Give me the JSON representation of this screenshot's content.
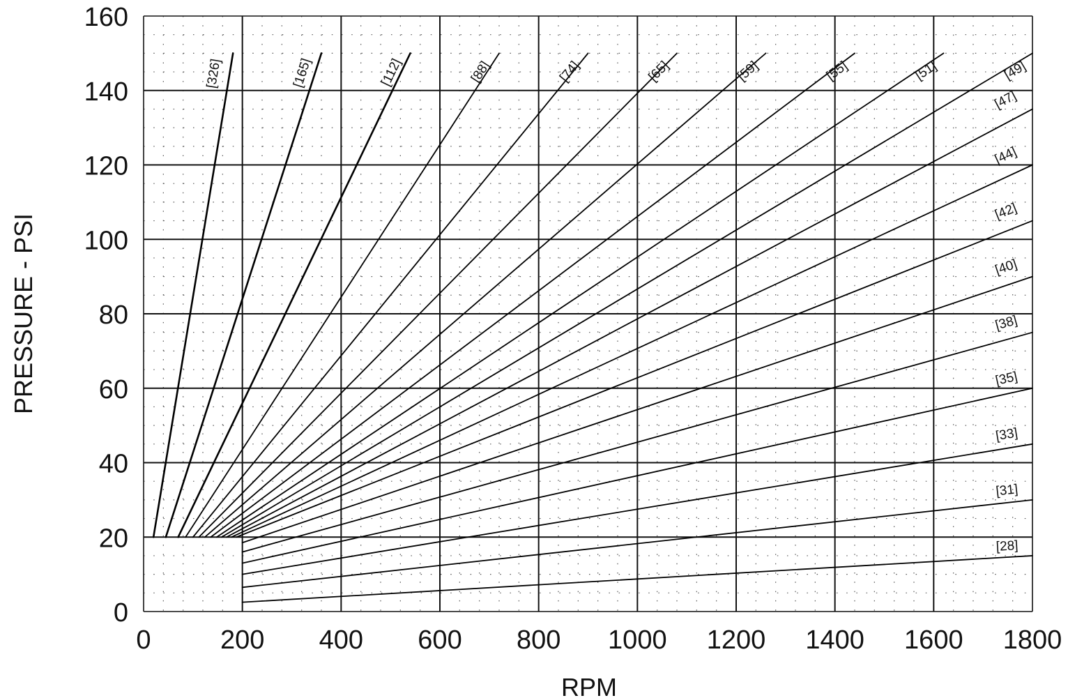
{
  "chart_data": {
    "type": "line",
    "title": "",
    "xlabel": "RPM",
    "ylabel": "PRESSURE - PSI",
    "xlim": [
      0,
      1800
    ],
    "ylim": [
      0,
      160
    ],
    "x_ticks": [
      "0",
      "200",
      "400",
      "600",
      "800",
      "1000",
      "1200",
      "1400",
      "1600",
      "1800"
    ],
    "y_ticks": [
      "0",
      "20",
      "40",
      "60",
      "80",
      "100",
      "120",
      "140",
      "160"
    ],
    "grid": true,
    "series": [
      {
        "name": "[326]",
        "points": [
          [
            20,
            20
          ],
          [
            181,
            150
          ]
        ]
      },
      {
        "name": "[165]",
        "points": [
          [
            45,
            20
          ],
          [
            360,
            150
          ]
        ]
      },
      {
        "name": "[112]",
        "points": [
          [
            70,
            20
          ],
          [
            540,
            150
          ]
        ]
      },
      {
        "name": "[88]",
        "points": [
          [
            85,
            20
          ],
          [
            720,
            150
          ]
        ]
      },
      {
        "name": "[74]",
        "points": [
          [
            100,
            20
          ],
          [
            900,
            150
          ]
        ]
      },
      {
        "name": "[65]",
        "points": [
          [
            112,
            20
          ],
          [
            1080,
            150
          ]
        ]
      },
      {
        "name": "[59]",
        "points": [
          [
            124,
            20
          ],
          [
            1260,
            150
          ]
        ]
      },
      {
        "name": "[55]",
        "points": [
          [
            136,
            20
          ],
          [
            1440,
            150
          ]
        ]
      },
      {
        "name": "[51]",
        "points": [
          [
            148,
            20
          ],
          [
            1620,
            150
          ]
        ]
      },
      {
        "name": "[49]",
        "points": [
          [
            158,
            20
          ],
          [
            1800,
            150
          ]
        ]
      },
      {
        "name": "[47]",
        "points": [
          [
            168,
            20
          ],
          [
            1800,
            135
          ]
        ]
      },
      {
        "name": "[44]",
        "points": [
          [
            178,
            20
          ],
          [
            1800,
            120
          ]
        ]
      },
      {
        "name": "[42]",
        "points": [
          [
            188,
            20
          ],
          [
            1800,
            105
          ]
        ]
      },
      {
        "name": "[40]",
        "points": [
          [
            200,
            18.5
          ],
          [
            1800,
            90
          ]
        ]
      },
      {
        "name": "[38]",
        "points": [
          [
            200,
            16
          ],
          [
            1800,
            75
          ]
        ]
      },
      {
        "name": "[35]",
        "points": [
          [
            200,
            13
          ],
          [
            1800,
            60
          ]
        ]
      },
      {
        "name": "[33]",
        "points": [
          [
            200,
            10
          ],
          [
            1800,
            45
          ]
        ]
      },
      {
        "name": "[31]",
        "points": [
          [
            200,
            6.5
          ],
          [
            1800,
            30
          ]
        ]
      },
      {
        "name": "[28]",
        "points": [
          [
            200,
            2.5
          ],
          [
            1800,
            15
          ]
        ]
      }
    ]
  }
}
